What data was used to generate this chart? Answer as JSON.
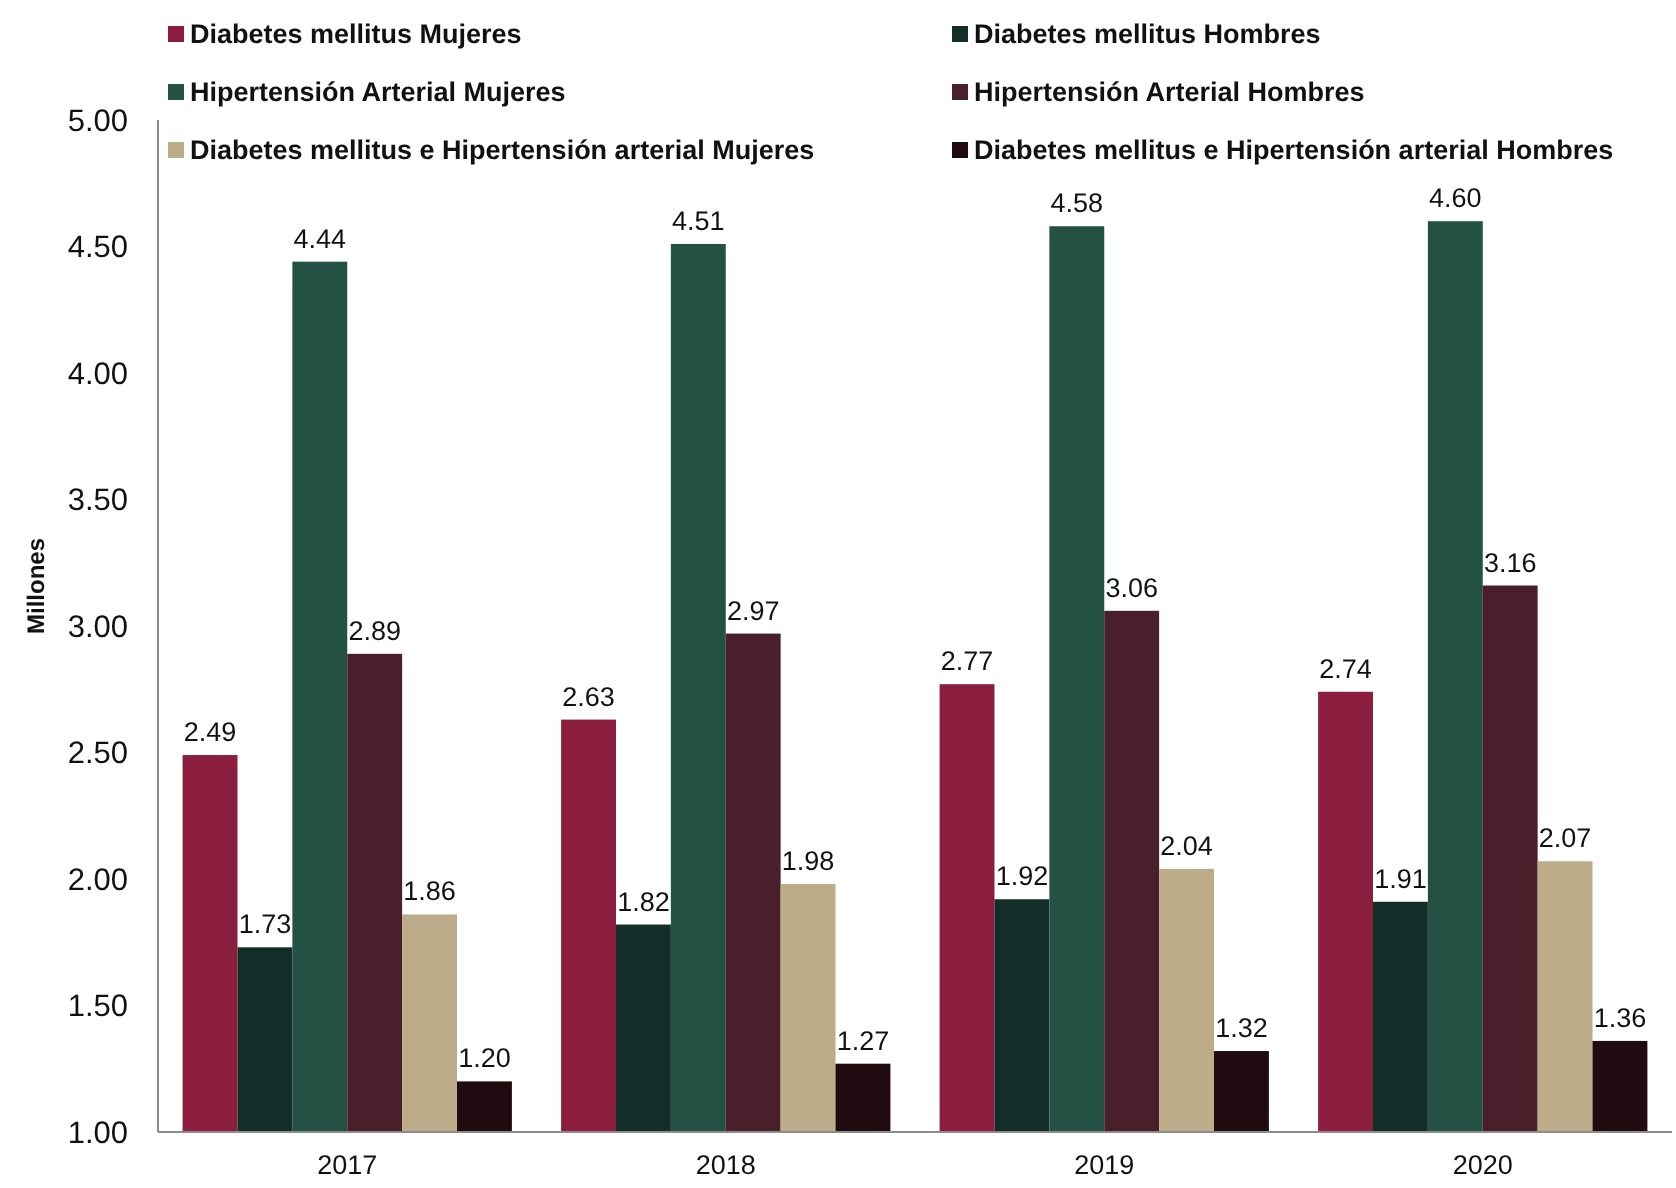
{
  "chart_data": {
    "type": "bar",
    "ylabel": "Millones",
    "categories": [
      "2017",
      "2018",
      "2019",
      "2020"
    ],
    "ylim": [
      1,
      5
    ],
    "yticks": [
      {
        "value": 1,
        "label": "1.00"
      },
      {
        "value": 1.5,
        "label": "1.50"
      },
      {
        "value": 2,
        "label": "2.00"
      },
      {
        "value": 2.5,
        "label": "2.50"
      },
      {
        "value": 3,
        "label": "3.00"
      },
      {
        "value": 3.5,
        "label": "3.50"
      },
      {
        "value": 4,
        "label": "4.00"
      },
      {
        "value": 4.5,
        "label": "4.50"
      },
      {
        "value": 5,
        "label": "5.00"
      }
    ],
    "legend": "top",
    "grid": false,
    "series": [
      {
        "name": "Diabetes mellitus Mujeres",
        "color": "#8b1e3f",
        "values": [
          2.49,
          2.63,
          2.77,
          2.74
        ],
        "value_labels": [
          "2.49",
          "2.63",
          "2.77",
          "2.74"
        ]
      },
      {
        "name": "Diabetes mellitus Hombres",
        "color": "#132e28",
        "values": [
          1.73,
          1.82,
          1.92,
          1.91
        ],
        "value_labels": [
          "1.73",
          "1.82",
          "1.92",
          "1.91"
        ]
      },
      {
        "name": "Hipertensión Arterial Mujeres",
        "color": "#235244",
        "values": [
          4.44,
          4.51,
          4.58,
          4.6
        ],
        "value_labels": [
          "4.44",
          "4.51",
          "4.58",
          "4.60"
        ]
      },
      {
        "name": "Hipertensión Arterial Hombres",
        "color": "#4a1f2c",
        "values": [
          2.89,
          2.97,
          3.06,
          3.16
        ],
        "value_labels": [
          "2.89",
          "2.97",
          "3.06",
          "3.16"
        ]
      },
      {
        "name": "Diabetes mellitus e Hipertensión arterial Mujeres",
        "color": "#bcac8a",
        "values": [
          1.86,
          1.98,
          2.04,
          2.07
        ],
        "value_labels": [
          "1.86",
          "1.98",
          "2.04",
          "2.07"
        ]
      },
      {
        "name": "Diabetes mellitus e Hipertensión arterial Hombres",
        "color": "#200c10",
        "values": [
          1.2,
          1.27,
          1.32,
          1.36
        ],
        "value_labels": [
          "1.20",
          "1.27",
          "1.32",
          "1.36"
        ]
      }
    ]
  }
}
